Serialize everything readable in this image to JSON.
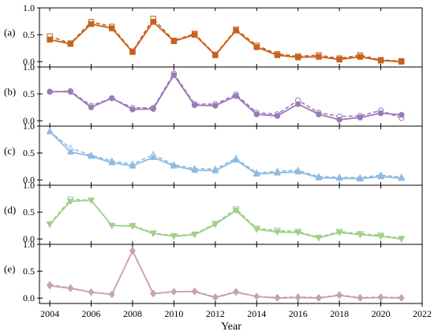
{
  "chart_data": {
    "type": "line",
    "xlabel": "Year",
    "x": [
      2004,
      2005,
      2006,
      2007,
      2008,
      2009,
      2010,
      2011,
      2012,
      2013,
      2014,
      2015,
      2016,
      2017,
      2018,
      2019,
      2020,
      2021
    ],
    "xlim": [
      2003.5,
      2022
    ],
    "xticks": [
      2004,
      2006,
      2008,
      2010,
      2012,
      2014,
      2016,
      2018,
      2020,
      2022
    ],
    "ylim": [
      -0.1,
      1.0
    ],
    "yticks": [
      0.0,
      0.5,
      1.0
    ],
    "ytick_labels": [
      "0.0",
      "0.5",
      "1.0"
    ],
    "grid": false,
    "panels": [
      {
        "label": "(a)",
        "color": "#c8611f",
        "marker": "square",
        "solid": [
          0.41,
          0.33,
          0.7,
          0.62,
          0.18,
          0.74,
          0.38,
          0.5,
          0.12,
          0.58,
          0.27,
          0.12,
          0.08,
          0.09,
          0.04,
          0.09,
          0.02,
          0.0
        ],
        "dashed": [
          0.47,
          0.34,
          0.74,
          0.65,
          0.19,
          0.8,
          0.39,
          0.52,
          0.13,
          0.6,
          0.3,
          0.14,
          0.1,
          0.12,
          0.06,
          0.12,
          0.03,
          0.01
        ]
      },
      {
        "label": "(b)",
        "color": "#9b7ab8",
        "marker": "circle",
        "solid": [
          0.54,
          0.54,
          0.25,
          0.42,
          0.21,
          0.22,
          0.85,
          0.29,
          0.28,
          0.46,
          0.12,
          0.09,
          0.31,
          0.12,
          0.02,
          0.06,
          0.14,
          0.11
        ],
        "dashed": [
          0.54,
          0.55,
          0.28,
          0.42,
          0.24,
          0.24,
          0.88,
          0.31,
          0.31,
          0.49,
          0.15,
          0.12,
          0.38,
          0.15,
          0.08,
          0.09,
          0.19,
          0.05
        ]
      },
      {
        "label": "(c)",
        "color": "#8fbbe3",
        "marker": "triangle-up",
        "solid": [
          0.9,
          0.52,
          0.44,
          0.32,
          0.26,
          0.42,
          0.26,
          0.18,
          0.17,
          0.37,
          0.11,
          0.13,
          0.15,
          0.04,
          0.03,
          0.02,
          0.06,
          0.03
        ],
        "dashed": [
          0.9,
          0.59,
          0.46,
          0.35,
          0.29,
          0.47,
          0.28,
          0.21,
          0.2,
          0.4,
          0.13,
          0.16,
          0.18,
          0.06,
          0.05,
          0.04,
          0.09,
          0.05
        ]
      },
      {
        "label": "(d)",
        "color": "#9fd08a",
        "marker": "triangle-down",
        "solid": [
          0.27,
          0.7,
          0.72,
          0.25,
          0.24,
          0.1,
          0.05,
          0.08,
          0.27,
          0.53,
          0.18,
          0.13,
          0.12,
          0.02,
          0.12,
          0.08,
          0.05,
          0.0
        ],
        "dashed": [
          0.28,
          0.74,
          0.72,
          0.25,
          0.25,
          0.11,
          0.06,
          0.09,
          0.29,
          0.56,
          0.2,
          0.16,
          0.14,
          0.03,
          0.14,
          0.1,
          0.07,
          0.01
        ]
      },
      {
        "label": "(e)",
        "color": "#c8a2ad",
        "marker": "diamond",
        "solid": [
          0.23,
          0.18,
          0.11,
          0.07,
          0.88,
          0.08,
          0.12,
          0.12,
          0.01,
          0.11,
          0.03,
          0.0,
          0.01,
          0.0,
          0.05,
          0.0,
          0.01,
          0.0
        ],
        "dashed": [
          0.25,
          0.19,
          0.11,
          0.07,
          0.88,
          0.09,
          0.12,
          0.13,
          0.02,
          0.12,
          0.03,
          0.01,
          0.02,
          0.01,
          0.06,
          0.01,
          0.02,
          0.01
        ]
      }
    ]
  }
}
